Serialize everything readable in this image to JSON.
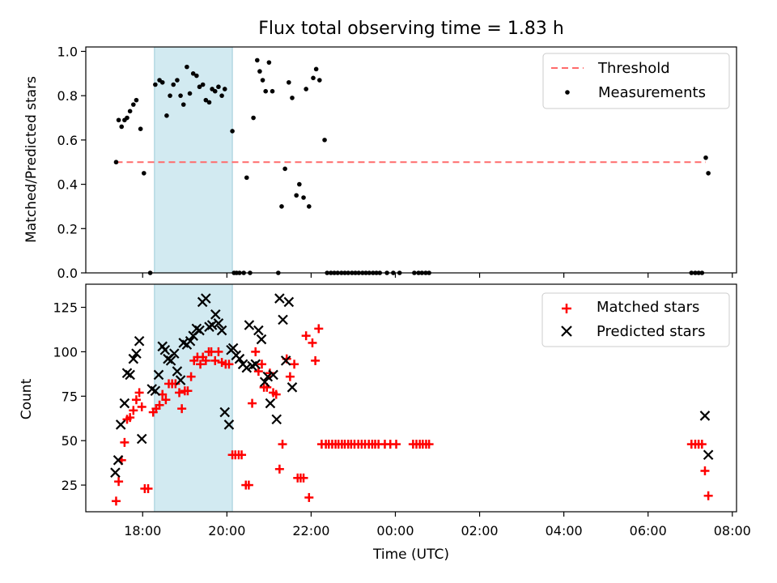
{
  "figure": {
    "title": "Flux total observing time = 1.83 h"
  },
  "chart_data": [
    {
      "type": "scatter",
      "title": "Flux total observing time = 1.83 h",
      "xlabel": "",
      "ylabel": "Matched/Predicted stars",
      "xlim": [
        16.65,
        32.1
      ],
      "ylim": [
        0,
        1.02
      ],
      "yticks": [
        0.0,
        0.2,
        0.4,
        0.6,
        0.8,
        1.0
      ],
      "ytick_labels": [
        "0.0",
        "0.2",
        "0.4",
        "0.6",
        "0.8",
        "1.0"
      ],
      "grid": false,
      "legend_position": "upper right",
      "shaded_span": [
        18.28,
        20.13
      ],
      "span_color": "#add8e6",
      "threshold": {
        "name": "Threshold",
        "value": 0.5,
        "x_range": [
          17.37,
          31.37
        ],
        "color": "#ff6b6b",
        "style": "dashed"
      },
      "series": [
        {
          "name": "Measurements",
          "color": "#000000",
          "marker": "dot",
          "points": [
            [
              17.37,
              0.5
            ],
            [
              17.43,
              0.69
            ],
            [
              17.5,
              0.66
            ],
            [
              17.57,
              0.69
            ],
            [
              17.63,
              0.7
            ],
            [
              17.7,
              0.73
            ],
            [
              17.78,
              0.76
            ],
            [
              17.85,
              0.78
            ],
            [
              17.95,
              0.65
            ],
            [
              18.03,
              0.45
            ],
            [
              18.18,
              0.0
            ],
            [
              18.3,
              0.85
            ],
            [
              18.4,
              0.87
            ],
            [
              18.47,
              0.86
            ],
            [
              18.57,
              0.71
            ],
            [
              18.65,
              0.8
            ],
            [
              18.73,
              0.85
            ],
            [
              18.82,
              0.87
            ],
            [
              18.9,
              0.8
            ],
            [
              18.97,
              0.76
            ],
            [
              19.05,
              0.93
            ],
            [
              19.12,
              0.81
            ],
            [
              19.2,
              0.9
            ],
            [
              19.28,
              0.89
            ],
            [
              19.35,
              0.84
            ],
            [
              19.43,
              0.85
            ],
            [
              19.5,
              0.78
            ],
            [
              19.58,
              0.77
            ],
            [
              19.65,
              0.83
            ],
            [
              19.72,
              0.82
            ],
            [
              19.8,
              0.84
            ],
            [
              19.88,
              0.8
            ],
            [
              19.95,
              0.83
            ],
            [
              20.13,
              0.64
            ],
            [
              20.17,
              0.0
            ],
            [
              20.23,
              0.0
            ],
            [
              20.3,
              0.0
            ],
            [
              20.4,
              0.0
            ],
            [
              20.47,
              0.43
            ],
            [
              20.55,
              0.0
            ],
            [
              20.63,
              0.7
            ],
            [
              20.72,
              0.96
            ],
            [
              20.78,
              0.91
            ],
            [
              20.85,
              0.87
            ],
            [
              20.92,
              0.82
            ],
            [
              21.0,
              0.95
            ],
            [
              21.08,
              0.82
            ],
            [
              21.22,
              0.0
            ],
            [
              21.3,
              0.3
            ],
            [
              21.38,
              0.47
            ],
            [
              21.47,
              0.86
            ],
            [
              21.55,
              0.79
            ],
            [
              21.65,
              0.35
            ],
            [
              21.72,
              0.4
            ],
            [
              21.82,
              0.34
            ],
            [
              21.88,
              0.83
            ],
            [
              21.95,
              0.3
            ],
            [
              22.05,
              0.88
            ],
            [
              22.12,
              0.92
            ],
            [
              22.2,
              0.87
            ],
            [
              22.32,
              0.6
            ],
            [
              22.38,
              0.0
            ],
            [
              22.47,
              0.0
            ],
            [
              22.55,
              0.0
            ],
            [
              22.63,
              0.0
            ],
            [
              22.72,
              0.0
            ],
            [
              22.8,
              0.0
            ],
            [
              22.88,
              0.0
            ],
            [
              22.97,
              0.0
            ],
            [
              23.05,
              0.0
            ],
            [
              23.13,
              0.0
            ],
            [
              23.22,
              0.0
            ],
            [
              23.3,
              0.0
            ],
            [
              23.38,
              0.0
            ],
            [
              23.47,
              0.0
            ],
            [
              23.55,
              0.0
            ],
            [
              23.63,
              0.0
            ],
            [
              23.8,
              0.0
            ],
            [
              23.95,
              0.0
            ],
            [
              24.1,
              0.0
            ],
            [
              24.45,
              0.0
            ],
            [
              24.55,
              0.0
            ],
            [
              24.63,
              0.0
            ],
            [
              24.72,
              0.0
            ],
            [
              24.8,
              0.0
            ],
            [
              31.03,
              0.0
            ],
            [
              31.12,
              0.0
            ],
            [
              31.2,
              0.0
            ],
            [
              31.28,
              0.0
            ],
            [
              31.37,
              0.52
            ],
            [
              31.43,
              0.45
            ]
          ]
        }
      ]
    },
    {
      "type": "scatter",
      "title": "",
      "xlabel": "Time (UTC)",
      "ylabel": "Count",
      "xlim": [
        16.65,
        32.1
      ],
      "ylim": [
        10,
        138
      ],
      "yticks": [
        25,
        50,
        75,
        100,
        125
      ],
      "ytick_labels": [
        "25",
        "50",
        "75",
        "100",
        "125"
      ],
      "xticks": [
        18,
        20,
        22,
        24,
        26,
        28,
        30,
        32
      ],
      "xtick_labels": [
        "18:00",
        "20:00",
        "22:00",
        "00:00",
        "02:00",
        "04:00",
        "06:00",
        "08:00"
      ],
      "grid": false,
      "legend_position": "upper right",
      "shaded_span": [
        18.28,
        20.13
      ],
      "span_color": "#add8e6",
      "series": [
        {
          "name": "Matched stars",
          "color": "#ff0000",
          "marker": "plus",
          "points": [
            [
              17.37,
              16
            ],
            [
              17.43,
              27
            ],
            [
              17.5,
              39
            ],
            [
              17.57,
              49
            ],
            [
              17.63,
              62
            ],
            [
              17.7,
              63
            ],
            [
              17.78,
              67
            ],
            [
              17.85,
              73
            ],
            [
              17.92,
              77
            ],
            [
              17.98,
              69
            ],
            [
              18.05,
              23
            ],
            [
              18.13,
              23
            ],
            [
              18.25,
              66
            ],
            [
              18.32,
              68
            ],
            [
              18.4,
              70
            ],
            [
              18.47,
              76
            ],
            [
              18.55,
              73
            ],
            [
              18.62,
              82
            ],
            [
              18.7,
              82
            ],
            [
              18.78,
              82
            ],
            [
              18.87,
              77
            ],
            [
              18.93,
              68
            ],
            [
              19.0,
              78
            ],
            [
              19.07,
              78
            ],
            [
              19.15,
              86
            ],
            [
              19.22,
              95
            ],
            [
              19.3,
              97
            ],
            [
              19.37,
              93
            ],
            [
              19.43,
              97
            ],
            [
              19.5,
              95
            ],
            [
              19.57,
              100
            ],
            [
              19.63,
              100
            ],
            [
              19.72,
              95
            ],
            [
              19.8,
              100
            ],
            [
              19.88,
              94
            ],
            [
              19.97,
              93
            ],
            [
              20.05,
              93
            ],
            [
              20.13,
              42
            ],
            [
              20.2,
              42
            ],
            [
              20.28,
              42
            ],
            [
              20.35,
              42
            ],
            [
              20.45,
              25
            ],
            [
              20.52,
              25
            ],
            [
              20.6,
              71
            ],
            [
              20.68,
              100
            ],
            [
              20.75,
              89
            ],
            [
              20.83,
              93
            ],
            [
              20.88,
              80
            ],
            [
              20.95,
              80
            ],
            [
              21.02,
              88
            ],
            [
              21.1,
              77
            ],
            [
              21.17,
              76
            ],
            [
              21.25,
              34
            ],
            [
              21.32,
              48
            ],
            [
              21.42,
              96
            ],
            [
              21.5,
              86
            ],
            [
              21.6,
              93
            ],
            [
              21.68,
              29
            ],
            [
              21.75,
              29
            ],
            [
              21.82,
              29
            ],
            [
              21.88,
              109
            ],
            [
              21.95,
              18
            ],
            [
              22.03,
              105
            ],
            [
              22.1,
              95
            ],
            [
              22.18,
              113
            ],
            [
              22.25,
              48
            ],
            [
              22.35,
              48
            ],
            [
              22.42,
              48
            ],
            [
              22.5,
              48
            ],
            [
              22.58,
              48
            ],
            [
              22.65,
              48
            ],
            [
              22.73,
              48
            ],
            [
              22.8,
              48
            ],
            [
              22.88,
              48
            ],
            [
              22.95,
              48
            ],
            [
              23.03,
              48
            ],
            [
              23.12,
              48
            ],
            [
              23.2,
              48
            ],
            [
              23.28,
              48
            ],
            [
              23.37,
              48
            ],
            [
              23.45,
              48
            ],
            [
              23.52,
              48
            ],
            [
              23.6,
              48
            ],
            [
              23.75,
              48
            ],
            [
              23.88,
              48
            ],
            [
              24.02,
              48
            ],
            [
              24.42,
              48
            ],
            [
              24.5,
              48
            ],
            [
              24.58,
              48
            ],
            [
              24.65,
              48
            ],
            [
              24.73,
              48
            ],
            [
              24.8,
              48
            ],
            [
              31.03,
              48
            ],
            [
              31.12,
              48
            ],
            [
              31.2,
              48
            ],
            [
              31.28,
              48
            ],
            [
              31.35,
              33
            ],
            [
              31.43,
              19
            ]
          ]
        },
        {
          "name": "Predicted stars",
          "color": "#000000",
          "marker": "x",
          "points": [
            [
              17.35,
              32
            ],
            [
              17.42,
              39
            ],
            [
              17.48,
              59
            ],
            [
              17.57,
              71
            ],
            [
              17.63,
              88
            ],
            [
              17.7,
              87
            ],
            [
              17.78,
              96
            ],
            [
              17.85,
              99
            ],
            [
              17.92,
              106
            ],
            [
              17.98,
              51
            ],
            [
              18.22,
              79
            ],
            [
              18.3,
              78
            ],
            [
              18.38,
              87
            ],
            [
              18.47,
              103
            ],
            [
              18.53,
              101
            ],
            [
              18.6,
              96
            ],
            [
              18.67,
              95
            ],
            [
              18.75,
              99
            ],
            [
              18.82,
              89
            ],
            [
              18.9,
              84
            ],
            [
              18.97,
              105
            ],
            [
              19.05,
              104
            ],
            [
              19.13,
              106
            ],
            [
              19.2,
              109
            ],
            [
              19.28,
              113
            ],
            [
              19.35,
              112
            ],
            [
              19.42,
              128
            ],
            [
              19.5,
              130
            ],
            [
              19.58,
              114
            ],
            [
              19.65,
              115
            ],
            [
              19.73,
              121
            ],
            [
              19.8,
              116
            ],
            [
              19.88,
              112
            ],
            [
              19.95,
              66
            ],
            [
              20.05,
              59
            ],
            [
              20.1,
              101
            ],
            [
              20.15,
              102
            ],
            [
              20.22,
              98
            ],
            [
              20.3,
              96
            ],
            [
              20.38,
              93
            ],
            [
              20.47,
              91
            ],
            [
              20.53,
              115
            ],
            [
              20.6,
              92
            ],
            [
              20.68,
              93
            ],
            [
              20.75,
              112
            ],
            [
              20.82,
              107
            ],
            [
              20.9,
              83
            ],
            [
              20.97,
              86
            ],
            [
              21.03,
              71
            ],
            [
              21.1,
              87
            ],
            [
              21.18,
              62
            ],
            [
              21.25,
              130
            ],
            [
              21.33,
              118
            ],
            [
              21.4,
              95
            ],
            [
              21.47,
              128
            ],
            [
              21.55,
              80
            ],
            [
              31.35,
              64
            ],
            [
              31.43,
              42
            ]
          ]
        }
      ]
    }
  ]
}
